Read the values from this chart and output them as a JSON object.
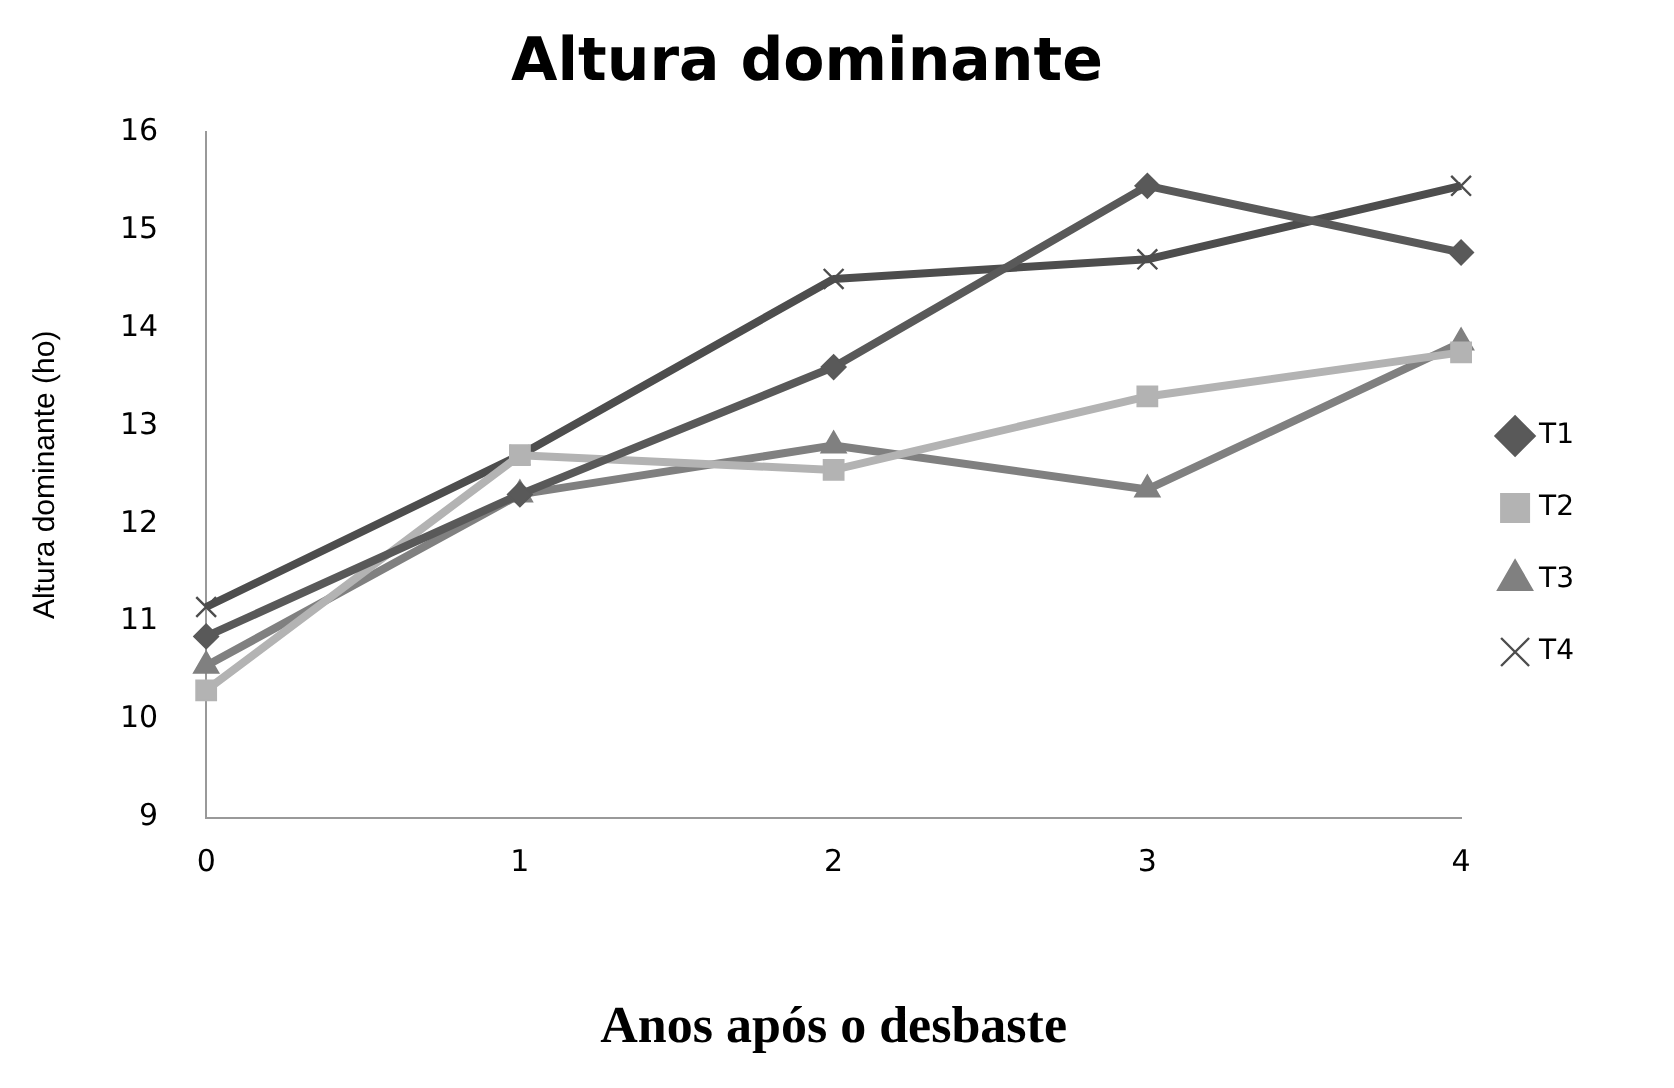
{
  "chart_data": {
    "type": "line",
    "title": "Altura dominante",
    "xlabel": "Anos após o desbaste",
    "ylabel": "Altura dominante (ho)",
    "categories": [
      "0",
      "1",
      "2",
      "3",
      "4"
    ],
    "series": [
      {
        "name": "T1",
        "color": "#595959",
        "marker": "diamond",
        "values": [
          10.85,
          12.3,
          13.6,
          15.45,
          14.77
        ]
      },
      {
        "name": "T2",
        "color": "#b3b3b3",
        "marker": "square",
        "values": [
          10.3,
          12.7,
          12.55,
          13.3,
          13.75
        ]
      },
      {
        "name": "T3",
        "color": "#808080",
        "marker": "triangle",
        "values": [
          10.55,
          12.3,
          12.8,
          12.35,
          13.85
        ]
      },
      {
        "name": "T4",
        "color": "#4d4d4d",
        "marker": "cross",
        "values": [
          11.15,
          12.7,
          14.5,
          14.7,
          15.45
        ]
      }
    ],
    "ylim": [
      9,
      16
    ],
    "yticks": [
      9,
      10,
      11,
      12,
      13,
      14,
      15,
      16
    ],
    "grid": false,
    "legend": "right"
  }
}
